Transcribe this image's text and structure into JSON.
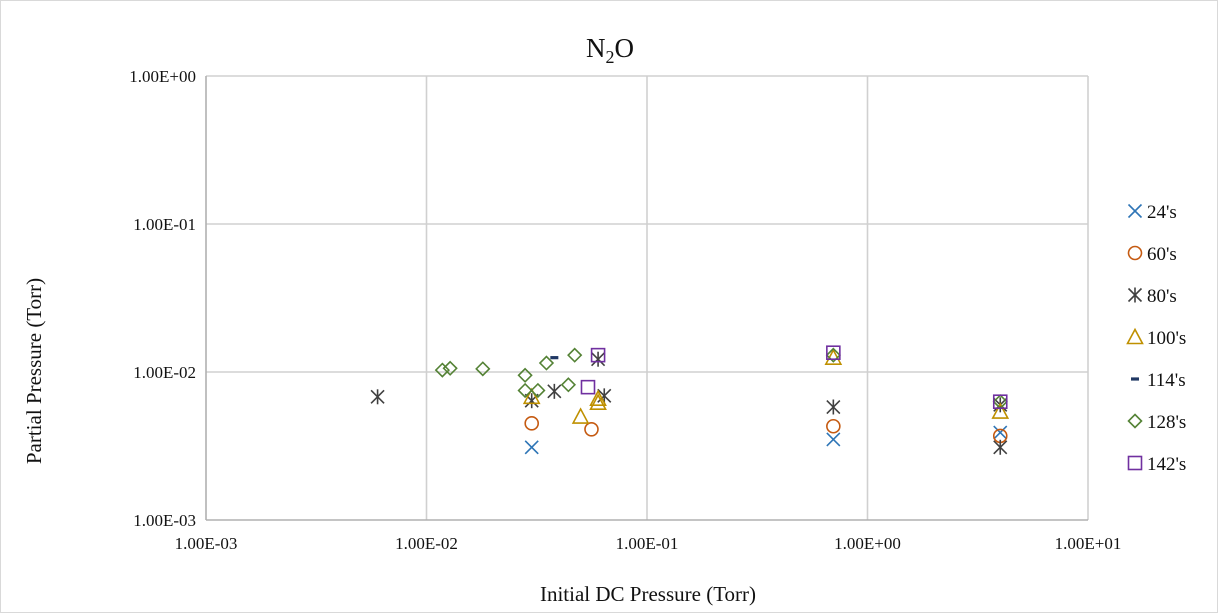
{
  "chart_data": {
    "type": "scatter",
    "title": {
      "main": "N",
      "sub": "2",
      "rest": "O"
    },
    "xlabel": "Initial DC Pressure (Torr)",
    "ylabel": "Partial Pressure (Torr)",
    "x_scale": "log",
    "y_scale": "log",
    "xlim": [
      0.001,
      10
    ],
    "ylim": [
      0.001,
      1
    ],
    "x_ticks": [
      0.001,
      0.01,
      0.1,
      1,
      10
    ],
    "x_tick_labels": [
      "1.00E-03",
      "1.00E-02",
      "1.00E-01",
      "1.00E+00",
      "1.00E+01"
    ],
    "y_ticks": [
      0.001,
      0.01,
      0.1,
      1
    ],
    "y_tick_labels": [
      "1.00E-03",
      "1.00E-02",
      "1.00E-01",
      "1.00E+00"
    ],
    "grid": "major",
    "legend_position": "right",
    "series": [
      {
        "name": "24's",
        "marker": "x",
        "color": "#2e75b6",
        "points": [
          [
            0.03,
            0.0031
          ],
          [
            0.7,
            0.0035
          ],
          [
            4.0,
            0.0039
          ]
        ]
      },
      {
        "name": "60's",
        "marker": "circle",
        "color": "#c55a11",
        "points": [
          [
            0.03,
            0.0045
          ],
          [
            0.056,
            0.0041
          ],
          [
            0.7,
            0.0043
          ],
          [
            4.0,
            0.0037
          ]
        ]
      },
      {
        "name": "80's",
        "marker": "asterisk",
        "color": "#404040",
        "points": [
          [
            0.006,
            0.0068
          ],
          [
            0.03,
            0.0064
          ],
          [
            0.038,
            0.0074
          ],
          [
            0.06,
            0.0122
          ],
          [
            0.064,
            0.0069
          ],
          [
            0.7,
            0.0058
          ],
          [
            4.0,
            0.0031
          ],
          [
            4.0,
            0.006
          ]
        ]
      },
      {
        "name": "100's",
        "marker": "triangle",
        "color": "#bf9000",
        "points": [
          [
            0.03,
            0.0068
          ],
          [
            0.05,
            0.005
          ],
          [
            0.06,
            0.0066
          ],
          [
            0.06,
            0.0062
          ],
          [
            0.7,
            0.0125
          ],
          [
            4.0,
            0.0054
          ]
        ]
      },
      {
        "name": "114's",
        "marker": "dash",
        "color": "#203864",
        "points": [
          [
            0.038,
            0.0125
          ]
        ]
      },
      {
        "name": "128's",
        "marker": "diamond",
        "color": "#548235",
        "points": [
          [
            0.0118,
            0.0103
          ],
          [
            0.0128,
            0.0106
          ],
          [
            0.018,
            0.0105
          ],
          [
            0.028,
            0.0095
          ],
          [
            0.028,
            0.0075
          ],
          [
            0.032,
            0.0075
          ],
          [
            0.035,
            0.0115
          ],
          [
            0.044,
            0.0082
          ],
          [
            0.047,
            0.013
          ],
          [
            0.7,
            0.013
          ],
          [
            4.0,
            0.0063
          ]
        ]
      },
      {
        "name": "142's",
        "marker": "square",
        "color": "#7030a0",
        "points": [
          [
            0.054,
            0.0079
          ],
          [
            0.06,
            0.013
          ],
          [
            0.7,
            0.0135
          ],
          [
            4.0,
            0.0063
          ]
        ]
      }
    ]
  }
}
